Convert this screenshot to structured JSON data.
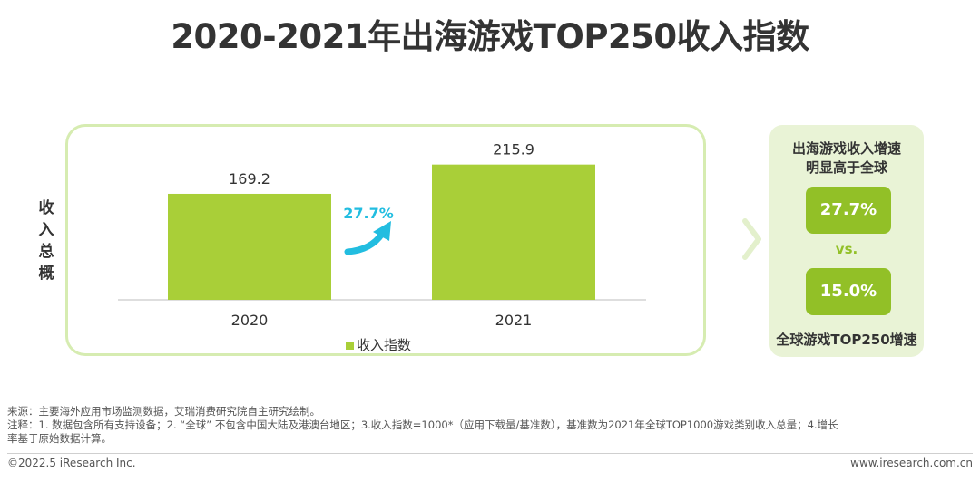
{
  "title": "2020-2021年出海游戏TOP250收入指数",
  "side_label": [
    "收",
    "入",
    "总",
    "概"
  ],
  "chart_data": {
    "type": "bar",
    "categories": [
      "2020",
      "2021"
    ],
    "series": [
      {
        "name": "收入指数",
        "values": [
          169.2,
          215.9
        ]
      }
    ],
    "data_labels": [
      "169.2",
      "215.9"
    ],
    "growth_annotation": "27.7%",
    "ylim": [
      0,
      240
    ],
    "grid": false,
    "legend": "bottom",
    "bar_color": "#a9cf38",
    "annotation_color": "#22bde0"
  },
  "comparison": {
    "heading": [
      "出海游戏收入增速",
      "明显高于全球"
    ],
    "value_a": "27.7%",
    "vs_label": "vs.",
    "value_b": "15.0%",
    "footer": "全球游戏TOP250增速",
    "accent_color": "#92c027"
  },
  "notes": {
    "source": "来源：主要海外应用市场监测数据，艾瑞消费研究院自主研究绘制。",
    "annotation_line1": "注释：1. 数据包含所有支持设备；2. “全球” 不包含中国大陆及港澳台地区；3.收入指数=1000*（应用下载量/基准数），基准数为2021年全球TOP1000游戏类别收入总量；4.增长",
    "annotation_line2": "率基于原始数据计算。"
  },
  "footer": {
    "copyright": "©2022.5 iResearch Inc.",
    "website": "www.iresearch.com.cn"
  }
}
